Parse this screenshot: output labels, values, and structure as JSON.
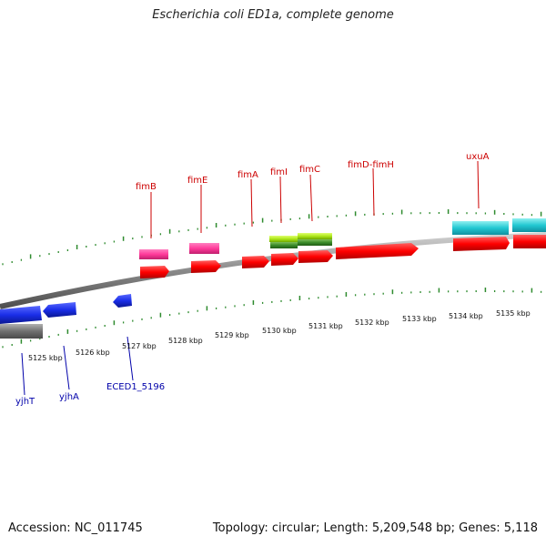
{
  "title": "Escherichia coli ED1a, complete genome",
  "footer": {
    "accession": "Accession: NC_011745",
    "topology": "Topology: circular; Length: 5,209,548 bp; Genes: 5,118"
  },
  "ticks": [
    "5125 kbp",
    "5126 kbp",
    "5127 kbp",
    "5128 kbp",
    "5129 kbp",
    "5130 kbp",
    "5131 kbp",
    "5132 kbp",
    "5133 kbp",
    "5134 kbp",
    "5135 kbp"
  ],
  "genes_top": [
    "fimB",
    "fimE",
    "fimA",
    "fimI",
    "fimC",
    "fimD-fimH",
    "uxuA"
  ],
  "genes_bottom": [
    "yjhT",
    "yjhA",
    "ECED1_5196"
  ],
  "colors": {
    "label_top": "#cc0000",
    "label_bottom": "#0000aa",
    "tick": "#2e8b2e",
    "backbone": "#808080"
  }
}
